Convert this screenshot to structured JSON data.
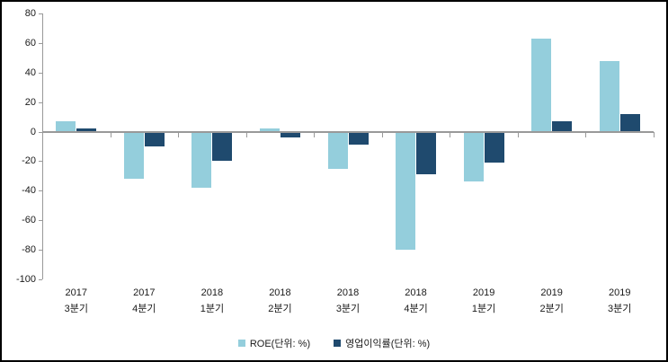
{
  "frame": {
    "background": "#FFFFFF",
    "border_color": "#000000"
  },
  "chart_data": {
    "type": "bar",
    "title": "",
    "xlabel": "",
    "ylabel": "",
    "categories": [
      {
        "year": "2017",
        "quarter": "3분기"
      },
      {
        "year": "2017",
        "quarter": "4분기"
      },
      {
        "year": "2018",
        "quarter": "1분기"
      },
      {
        "year": "2018",
        "quarter": "2분기"
      },
      {
        "year": "2018",
        "quarter": "3분기"
      },
      {
        "year": "2018",
        "quarter": "4분기"
      },
      {
        "year": "2019",
        "quarter": "1분기"
      },
      {
        "year": "2019",
        "quarter": "2분기"
      },
      {
        "year": "2019",
        "quarter": "3분기"
      }
    ],
    "series": [
      {
        "key": "roe",
        "name": "ROE(단위: %)",
        "color": "#94CEDC",
        "values": [
          7,
          -32,
          -38,
          2,
          -25,
          -80,
          -34,
          63,
          48
        ]
      },
      {
        "key": "opm",
        "name": "영업이익률(단위: %)",
        "color": "#1F4A6E",
        "values": [
          2,
          -10,
          -20,
          -4,
          -9,
          -29,
          -21,
          7,
          12
        ]
      }
    ],
    "ylim": [
      -100,
      80
    ],
    "yticks": [
      80,
      60,
      40,
      20,
      0,
      -20,
      -40,
      -60,
      -80,
      -100
    ],
    "grid": false,
    "legend_position": "bottom",
    "axis_color": "#999999",
    "text_color": "#1A1A1A"
  }
}
